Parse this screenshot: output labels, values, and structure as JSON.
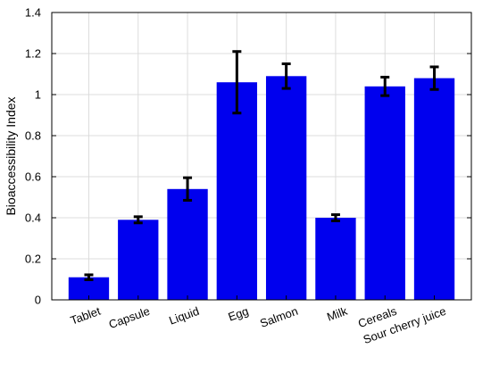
{
  "chart_data": {
    "type": "bar",
    "title": "",
    "xlabel": "",
    "ylabel": "Bioaccessibility Index",
    "categories": [
      "Tablet",
      "Capsule",
      "Liquid",
      "Egg",
      "Salmon",
      "Milk",
      "Cereals",
      "Sour cherry juice"
    ],
    "values": [
      0.11,
      0.39,
      0.54,
      1.06,
      1.09,
      0.4,
      1.04,
      1.08
    ],
    "error": [
      0.012,
      0.015,
      0.055,
      0.15,
      0.06,
      0.015,
      0.045,
      0.055
    ],
    "ylim": [
      0,
      1.4
    ],
    "yticks": [
      0,
      0.2,
      0.4,
      0.6,
      0.8,
      1,
      1.2,
      1.4
    ],
    "ytick_labels": [
      "0",
      "0.2",
      "0.4",
      "0.6",
      "0.8",
      "1",
      "1.2",
      "1.4"
    ],
    "grid": true,
    "colors": {
      "bar": "#0000ee",
      "error": "#000000",
      "grid": "#dcdcdc",
      "axis": "#000000"
    }
  }
}
